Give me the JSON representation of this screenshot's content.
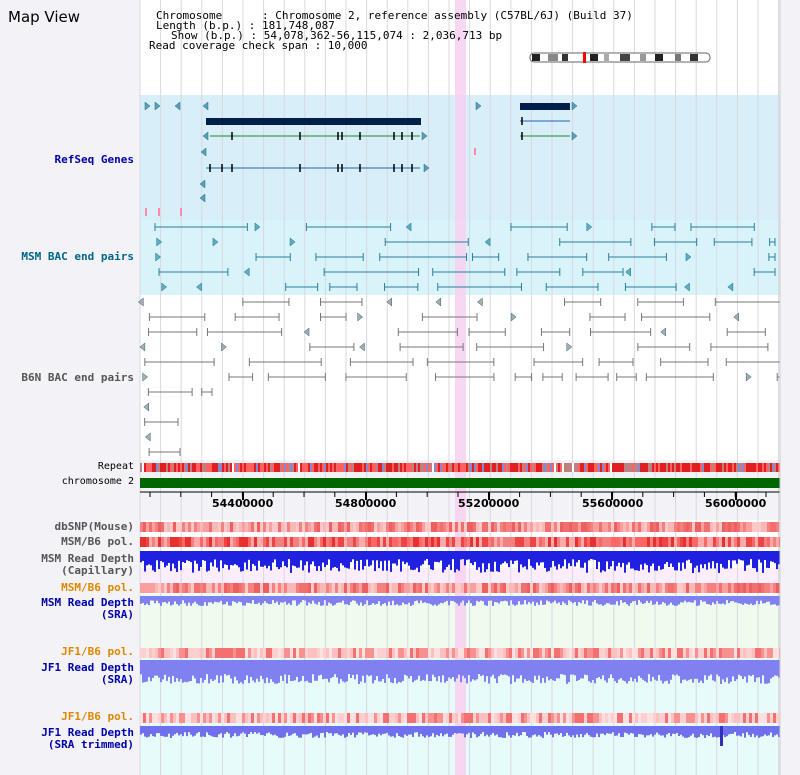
{
  "title": "Map View",
  "header": {
    "chromosome": "Chromosome      : Chromosome 2, reference assembly (C57BL/6J) (Build 37)",
    "length": "Length (b.p.) : 181,748,087",
    "show": "Show (b.p.) : 54,078,362-56,115,074 : 2,036,713 bp",
    "coverage": "Read coverage check span : 10,000"
  },
  "tracks": {
    "refseq": "RefSeq Genes",
    "msm_bac": "MSM BAC end pairs",
    "b6n_bac": "B6N BAC end pairs",
    "repeat": "Repeat",
    "chromosome": "chromosome 2",
    "dbsnp": "dbSNP(Mouse)",
    "msm_b6_pol_1": "MSM/B6 pol.",
    "msm_read_depth_cap_1": "MSM Read Depth",
    "msm_read_depth_cap_2": "(Capillary)",
    "msm_b6_pol_2": "MSM/B6 pol.",
    "msm_read_depth_sra_1": "MSM Read Depth",
    "msm_read_depth_sra_2": "(SRA)",
    "jf1_b6_pol_1": "JF1/B6 pol.",
    "jf1_read_depth_1": "JF1 Read Depth",
    "jf1_read_depth_2": "(SRA)",
    "jf1_b6_pol_2": "JF1/B6 pol.",
    "jf1_read_depth_trim_1": "JF1 Read Depth",
    "jf1_read_depth_trim_2": "(SRA trimmed)"
  },
  "axis": {
    "ticks": [
      "54400000",
      "54800000",
      "55200000",
      "55600000",
      "56000000"
    ]
  },
  "colors": {
    "refseq_bg": "#d8effa",
    "bac_bg": "#d8f3fa",
    "gene": "#00204a",
    "highlight": "#f7d0f0",
    "chrom": "#006600",
    "label_blue": "#0000aa",
    "label_teal": "#006688",
    "label_orange": "#dd8800"
  }
}
